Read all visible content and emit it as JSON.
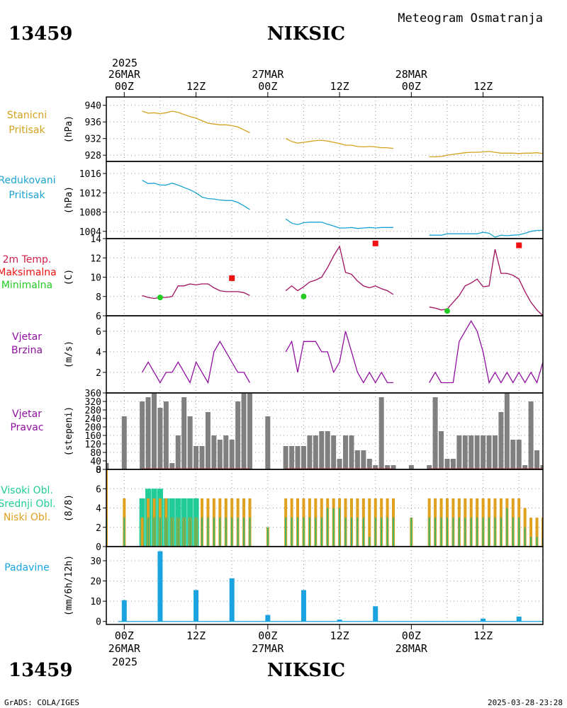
{
  "header": {
    "station_id": "13459",
    "station_name": "NIKSIC",
    "product_title": "Meteogram Osmatranja"
  },
  "footer": {
    "station_id": "13459",
    "station_name": "NIKSIC",
    "credit": "GrADS: COLA/IGES",
    "timestamp": "2025-03-28-23:28"
  },
  "colors": {
    "pressure": "#d4a21e",
    "reduced_pressure": "#1aa3d0",
    "temp_title": "#d0204a",
    "temp_line": "#a01060",
    "tmax": "#ee1111",
    "tmin": "#22cc22",
    "wind": "#9010a0",
    "wind_dir": "#808080",
    "high_cloud": "#22cc99",
    "mid_cloud": "#3db86a",
    "low_cloud": "#e0a020",
    "precip": "#1aa3e0"
  },
  "time_axis": {
    "top_year": "2025",
    "bottom_year": "2025",
    "ticks": [
      {
        "hour": 0,
        "hour_label": "00Z",
        "date_label": "26MAR"
      },
      {
        "hour": 12,
        "hour_label": "12Z",
        "date_label": ""
      },
      {
        "hour": 24,
        "hour_label": "00Z",
        "date_label": "27MAR"
      },
      {
        "hour": 36,
        "hour_label": "12Z",
        "date_label": ""
      },
      {
        "hour": 48,
        "hour_label": "00Z",
        "date_label": "28MAR"
      },
      {
        "hour": 60,
        "hour_label": "12Z",
        "date_label": ""
      }
    ],
    "range_hours": [
      -3,
      70
    ]
  },
  "panels": {
    "station_pressure": {
      "label_lines": [
        "Stanicni",
        "Pritisak"
      ],
      "unit": "(hPa)"
    },
    "reduced_pressure": {
      "label_lines": [
        "Redukovani",
        "Pritisak"
      ],
      "unit": "(hPa)"
    },
    "temperature": {
      "label_lines": [
        "2m Temp.",
        "Maksimalna",
        "Minimalna"
      ],
      "unit": "(C)"
    },
    "wind_speed": {
      "label_lines": [
        "Vjetar",
        "Brzina"
      ],
      "unit": "(m/s)"
    },
    "wind_direction": {
      "label_lines": [
        "Vjetar",
        "Pravac"
      ],
      "unit": "(stepeni)"
    },
    "clouds": {
      "label_lines": [
        "Visoki Obl.",
        "Srednji Obl.",
        "Niski Obl."
      ],
      "unit": "(8/8)"
    },
    "precipitation": {
      "label_lines": [
        "Padavine"
      ],
      "unit": "(mm/6h/12h)"
    }
  },
  "chart_data": [
    {
      "id": "station_pressure",
      "type": "line",
      "ylabel": "(hPa)",
      "ylim": [
        926.5,
        942
      ],
      "yticks": [
        928,
        932,
        936,
        940
      ],
      "grid": true,
      "segments": [
        {
          "x": [
            3,
            4,
            5,
            6,
            7,
            8,
            9,
            10,
            11,
            12,
            13,
            14,
            15,
            16,
            17,
            18,
            19,
            20,
            21
          ],
          "y": [
            938.6,
            938.1,
            938.2,
            938,
            938.2,
            938.6,
            938.3,
            937.8,
            937.3,
            936.9,
            936.3,
            935.7,
            935.5,
            935.3,
            935.3,
            935.1,
            934.8,
            934.1,
            933.4
          ]
        },
        {
          "x": [
            27,
            28,
            29,
            30,
            31,
            32,
            33,
            34,
            35,
            36,
            37,
            38,
            39,
            40,
            41,
            42,
            43,
            44,
            45
          ],
          "y": [
            932,
            931.3,
            930.9,
            931.1,
            931.3,
            931.5,
            931.6,
            931.4,
            931.1,
            930.8,
            930.4,
            930.4,
            930.1,
            930,
            930.1,
            930,
            929.8,
            929.8,
            929.6
          ]
        },
        {
          "x": [
            51,
            52,
            53,
            54,
            55,
            56,
            57,
            58,
            59,
            60,
            61,
            62,
            63,
            64,
            65,
            66,
            67,
            68,
            69,
            70
          ],
          "y": [
            927.6,
            927.6,
            927.7,
            928,
            928.2,
            928.4,
            928.6,
            928.7,
            928.7,
            928.8,
            928.9,
            928.7,
            928.5,
            928.5,
            928.5,
            928.4,
            928.5,
            928.5,
            928.6,
            928.4
          ]
        }
      ]
    },
    {
      "id": "reduced_pressure",
      "type": "line",
      "ylabel": "(hPa)",
      "ylim": [
        1002.5,
        1018.5
      ],
      "yticks": [
        1004,
        1008,
        1012,
        1016
      ],
      "grid": true,
      "segments": [
        {
          "x": [
            3,
            4,
            5,
            6,
            7,
            8,
            9,
            10,
            11,
            12,
            13,
            14,
            15,
            16,
            17,
            18,
            19,
            20,
            21
          ],
          "y": [
            1014.6,
            1013.9,
            1014,
            1013.6,
            1013.6,
            1014,
            1013.6,
            1013.1,
            1012.6,
            1012,
            1011.1,
            1010.8,
            1010.7,
            1010.5,
            1010.4,
            1010.4,
            1010,
            1009.3,
            1008.5
          ]
        },
        {
          "x": [
            27,
            28,
            29,
            30,
            31,
            32,
            33,
            34,
            35,
            36,
            37,
            38,
            39,
            40,
            41,
            42,
            43,
            44,
            45
          ],
          "y": [
            1006.6,
            1005.7,
            1005.4,
            1005.8,
            1005.9,
            1005.9,
            1005.9,
            1005.5,
            1005.1,
            1004.7,
            1004.7,
            1004.8,
            1004.6,
            1004.7,
            1004.8,
            1004.7,
            1004.8,
            1004.8,
            1004.8
          ]
        },
        {
          "x": [
            51,
            52,
            53,
            54,
            55,
            56,
            57,
            58,
            59,
            60,
            61,
            62,
            63,
            64,
            65,
            66,
            67,
            68,
            69,
            70
          ],
          "y": [
            1003.2,
            1003.2,
            1003.2,
            1003.5,
            1003.5,
            1003.5,
            1003.5,
            1003.5,
            1003.5,
            1003.8,
            1003.6,
            1002.8,
            1003.2,
            1003.1,
            1003.2,
            1003.3,
            1003.6,
            1004,
            1004.2,
            1004.2
          ]
        }
      ]
    },
    {
      "id": "temperature",
      "type": "line",
      "ylabel": "(C)",
      "ylim": [
        6,
        14
      ],
      "yticks": [
        6,
        8,
        10,
        12,
        14
      ],
      "grid": true,
      "segments": [
        {
          "x": [
            3,
            4,
            5,
            6,
            7,
            8,
            9,
            10,
            11,
            12,
            13,
            14,
            15,
            16,
            17,
            18,
            19,
            20,
            21
          ],
          "y": [
            8.1,
            7.9,
            7.8,
            7.9,
            7.9,
            8,
            9.1,
            9.1,
            9.3,
            9.2,
            9.3,
            9.3,
            8.9,
            8.6,
            8.5,
            8.5,
            8.5,
            8.4,
            8.1
          ]
        },
        {
          "x": [
            27,
            28,
            29,
            30,
            31,
            32,
            33,
            34,
            35,
            36,
            37,
            38,
            39,
            40,
            41,
            42,
            43,
            44,
            45
          ],
          "y": [
            8.6,
            9.1,
            8.6,
            9,
            9.5,
            9.7,
            10,
            11,
            12.2,
            13.2,
            10.5,
            10.3,
            9.6,
            9.1,
            8.9,
            9.1,
            8.8,
            8.6,
            8.2
          ]
        },
        {
          "x": [
            51,
            52,
            53,
            54,
            55,
            56,
            57,
            58,
            59,
            60,
            61,
            62,
            63,
            64,
            65,
            66,
            67,
            68,
            69,
            70
          ],
          "y": [
            6.9,
            6.8,
            6.6,
            6.7,
            7.4,
            8.1,
            9.1,
            9.4,
            9.8,
            9,
            9.1,
            12.9,
            10.4,
            10.4,
            10.2,
            9.8,
            8.5,
            7.4,
            6.6,
            6
          ]
        }
      ],
      "tmax": [
        {
          "x": 18,
          "y": 9.9
        },
        {
          "x": 42,
          "y": 13.5
        },
        {
          "x": 66,
          "y": 13.3
        }
      ],
      "tmin": [
        {
          "x": 6,
          "y": 7.9
        },
        {
          "x": 30,
          "y": 8
        },
        {
          "x": 54,
          "y": 6.5
        }
      ]
    },
    {
      "id": "wind_speed",
      "type": "line",
      "ylabel": "(m/s)",
      "ylim": [
        0,
        7.5
      ],
      "yticks": [
        2,
        4,
        6
      ],
      "grid": true,
      "segments": [
        {
          "x": [
            3,
            4,
            5,
            6,
            7,
            8,
            9,
            10,
            11,
            12,
            13,
            14,
            15,
            16,
            17,
            18,
            19,
            20,
            21
          ],
          "y": [
            2,
            3,
            2,
            1,
            2,
            2,
            3,
            2,
            1,
            3,
            2,
            1,
            4,
            5,
            4,
            3,
            2,
            2,
            1
          ]
        },
        {
          "x": [
            27,
            28,
            29,
            30,
            31,
            32,
            33,
            34,
            35,
            36,
            37,
            38,
            39,
            40,
            41,
            42,
            43,
            44,
            45
          ],
          "y": [
            4,
            5,
            2,
            5,
            5,
            5,
            4,
            4,
            2,
            3,
            6,
            4,
            2,
            1,
            2,
            1,
            2,
            1,
            1
          ]
        },
        {
          "x": [
            51,
            52,
            53,
            54,
            55,
            56,
            57,
            58,
            59,
            60,
            61,
            62,
            63,
            64,
            65,
            66,
            67,
            68,
            69,
            70
          ],
          "y": [
            1,
            2,
            1,
            1,
            1,
            5,
            6,
            7,
            6,
            4,
            1,
            2,
            1,
            2,
            1,
            2,
            1,
            2,
            1,
            3
          ]
        }
      ]
    },
    {
      "id": "wind_direction",
      "type": "bar",
      "ylabel": "(stepeni)",
      "ylim": [
        0,
        360
      ],
      "yticks": [
        0,
        40,
        80,
        120,
        160,
        200,
        240,
        280,
        320,
        360
      ],
      "grid": true,
      "x": [
        -3,
        0,
        3,
        4,
        5,
        6,
        7,
        8,
        9,
        10,
        11,
        12,
        13,
        14,
        15,
        16,
        17,
        18,
        19,
        20,
        21,
        24,
        27,
        28,
        29,
        30,
        31,
        32,
        33,
        34,
        35,
        36,
        37,
        38,
        39,
        40,
        41,
        42,
        43,
        44,
        45,
        48,
        51,
        52,
        53,
        54,
        55,
        56,
        57,
        58,
        59,
        60,
        61,
        62,
        63,
        64,
        65,
        66,
        67,
        68,
        69,
        70
      ],
      "values": [
        30,
        250,
        320,
        340,
        360,
        290,
        320,
        30,
        160,
        340,
        250,
        110,
        110,
        270,
        160,
        140,
        160,
        140,
        320,
        360,
        360,
        250,
        110,
        110,
        110,
        110,
        160,
        160,
        180,
        180,
        160,
        50,
        160,
        160,
        90,
        90,
        50,
        20,
        340,
        20,
        20,
        20,
        20,
        340,
        180,
        50,
        50,
        160,
        160,
        160,
        160,
        160,
        160,
        160,
        270,
        360,
        140,
        140,
        20,
        320,
        90,
        20
      ]
    },
    {
      "id": "clouds",
      "type": "bar",
      "ylabel": "(8/8)",
      "ylim": [
        0,
        8
      ],
      "yticks": [
        0,
        2,
        4,
        6,
        8
      ],
      "grid": true,
      "x": [
        -3,
        0,
        3,
        4,
        5,
        6,
        7,
        8,
        9,
        10,
        11,
        12,
        13,
        14,
        15,
        16,
        17,
        18,
        19,
        20,
        21,
        24,
        27,
        28,
        29,
        30,
        31,
        32,
        33,
        34,
        35,
        36,
        37,
        38,
        39,
        40,
        41,
        42,
        43,
        44,
        45,
        48,
        51,
        52,
        53,
        54,
        55,
        56,
        57,
        58,
        59,
        60,
        61,
        62,
        63,
        64,
        65,
        66,
        67,
        68,
        69,
        70
      ],
      "series": [
        {
          "name": "Niski Obl.",
          "values": [
            8,
            5,
            3,
            5,
            5,
            5,
            5,
            3,
            3,
            3,
            3,
            3,
            5,
            5,
            5,
            5,
            5,
            5,
            5,
            5,
            5,
            2,
            5,
            5,
            5,
            5,
            5,
            5,
            5,
            5,
            5,
            5,
            5,
            5,
            5,
            5,
            5,
            5,
            5,
            5,
            5,
            3,
            5,
            5,
            5,
            5,
            5,
            5,
            5,
            5,
            5,
            5,
            5,
            5,
            5,
            5,
            5,
            5,
            4,
            3,
            3,
            3
          ]
        },
        {
          "name": "Srednji Obl.",
          "values": [
            3,
            3,
            0,
            3,
            3,
            3,
            3,
            3,
            3,
            3,
            3,
            3,
            3,
            3,
            3,
            3,
            3,
            3,
            3,
            3,
            3,
            2,
            3,
            3,
            3,
            3,
            3,
            3,
            3,
            4,
            4,
            4,
            3,
            3,
            3,
            3,
            1,
            3,
            3,
            3,
            3,
            3,
            3,
            3,
            3,
            3,
            3,
            3,
            3,
            3,
            3,
            3,
            3,
            3,
            3,
            4,
            3,
            3,
            2,
            1,
            1,
            1
          ]
        },
        {
          "name": "Visoki Obl.",
          "values": [
            0,
            0,
            5,
            6,
            6,
            6,
            5,
            5,
            5,
            5,
            5,
            5,
            0,
            0,
            0,
            0,
            0,
            0,
            0,
            0,
            0,
            0,
            0,
            0,
            0,
            0,
            0,
            0,
            0,
            0,
            0,
            0,
            0,
            0,
            0,
            0,
            0,
            0,
            0,
            0,
            0,
            0,
            0,
            0,
            0,
            0,
            0,
            0,
            0,
            0,
            0,
            0,
            0,
            0,
            0,
            0,
            0,
            0,
            0,
            0,
            0,
            0
          ]
        }
      ]
    },
    {
      "id": "precipitation",
      "type": "bar",
      "ylabel": "(mm/6h/12h)",
      "ylim": [
        -1.5,
        37
      ],
      "yticks": [
        0,
        10,
        20,
        30
      ],
      "grid": true,
      "x": [
        0,
        6,
        12,
        18,
        24,
        30,
        36,
        42,
        60,
        66
      ],
      "values": [
        10.5,
        34.7,
        15.5,
        21.3,
        3.2,
        15.5,
        0.9,
        7.5,
        1.4,
        2.4
      ]
    }
  ]
}
